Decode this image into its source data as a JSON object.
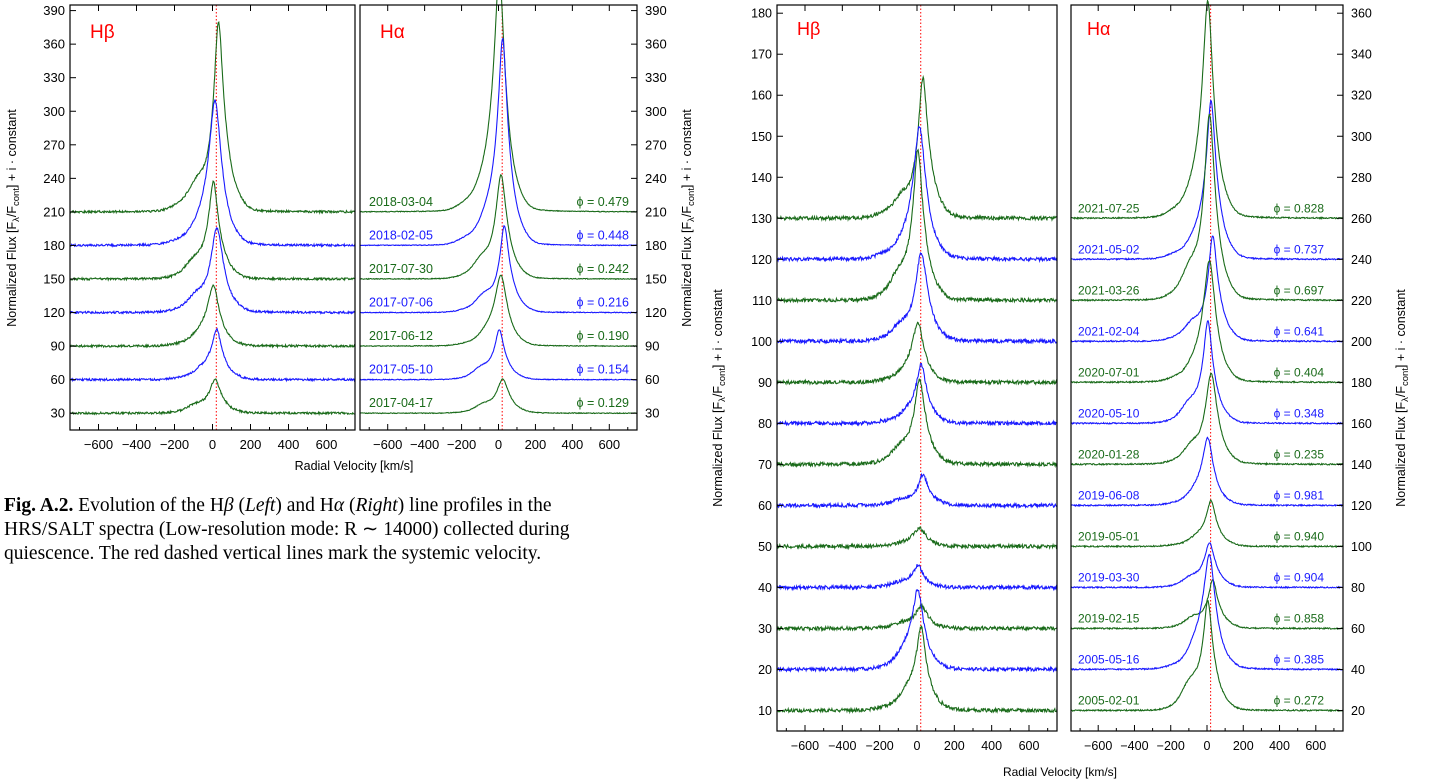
{
  "caption": {
    "label": "Fig. A.2.",
    "line1_a": " Evolution of the H",
    "beta": "β",
    "line1_b": " (",
    "left": "Left",
    "line1_c": ") and H",
    "alpha": "α",
    "line1_d": " (",
    "right": "Right",
    "line1_e": ") line profiles in the",
    "line2": "HRS/SALT spectra (Low-resolution mode: R ∼ 14000) collected during",
    "line3": "quiescence. The red dashed vertical lines mark the systemic velocity."
  },
  "colors": {
    "green": "#1a6b1a",
    "blue": "#1a1aff",
    "red": "#ff0000",
    "axis": "#000000"
  },
  "chart_data": [
    {
      "type": "line",
      "panel_labels": [
        "Hβ",
        "Hα"
      ],
      "xlabel": "Radial Velocity [km/s]",
      "ylabel": "Normalized Flux [F",
      "ylabel_sub1": "λ",
      "ylabel_mid": "/F",
      "ylabel_sub2": "cont",
      "ylabel_end": "] + i · constant",
      "xlim": [
        -750,
        750
      ],
      "xticks": [
        -600,
        -400,
        -200,
        0,
        200,
        400,
        600
      ],
      "xtick_labels": [
        "−600",
        "−400",
        "−200",
        "0",
        "200",
        "400",
        "600"
      ],
      "ylim": [
        15,
        395
      ],
      "yticks": [
        30,
        60,
        90,
        120,
        150,
        180,
        210,
        240,
        270,
        300,
        330,
        360,
        390
      ],
      "ytick_labels": [
        "30",
        "60",
        "90",
        "120",
        "150",
        "180",
        "210",
        "240",
        "270",
        "300",
        "330",
        "360",
        "390"
      ],
      "systemic_velocity": 20,
      "series": [
        {
          "date": "2018-03-04",
          "phase": "ϕ = 0.479",
          "color": "green",
          "hb_base": 210,
          "hb_peak": 158,
          "ha_base": 210,
          "ha_peak": 190
        },
        {
          "date": "2018-02-05",
          "phase": "ϕ = 0.448",
          "color": "blue",
          "hb_base": 180,
          "hb_peak": 116,
          "ha_base": 180,
          "ha_peak": 167
        },
        {
          "date": "2017-07-30",
          "phase": "ϕ = 0.242",
          "color": "green",
          "hb_base": 150,
          "hb_peak": 80,
          "ha_base": 150,
          "ha_peak": 86
        },
        {
          "date": "2017-07-06",
          "phase": "ϕ = 0.216",
          "color": "blue",
          "hb_base": 120,
          "hb_peak": 70,
          "ha_base": 120,
          "ha_peak": 72
        },
        {
          "date": "2017-06-12",
          "phase": "ϕ = 0.190",
          "color": "green",
          "hb_base": 90,
          "hb_peak": 48,
          "ha_base": 90,
          "ha_peak": 56
        },
        {
          "date": "2017-05-10",
          "phase": "ϕ = 0.154",
          "color": "blue",
          "hb_base": 60,
          "hb_peak": 40,
          "ha_base": 60,
          "ha_peak": 41
        },
        {
          "date": "2017-04-17",
          "phase": "ϕ = 0.129",
          "color": "green",
          "hb_base": 30,
          "hb_peak": 28,
          "ha_base": 30,
          "ha_peak": 28
        }
      ]
    },
    {
      "type": "line",
      "panel_labels": [
        "Hβ",
        "Hα"
      ],
      "xlabel": "Radial Velocity [km/s]",
      "ylabel": "Normalized Flux [F",
      "ylabel_sub1": "λ",
      "ylabel_mid": "/F",
      "ylabel_sub2": "cont",
      "ylabel_end": "] + i · constant",
      "xlim": [
        -750,
        750
      ],
      "xticks": [
        -600,
        -400,
        -200,
        0,
        200,
        400,
        600
      ],
      "xtick_labels": [
        "−600",
        "−400",
        "−200",
        "0",
        "200",
        "400",
        "600"
      ],
      "hb_ylim": [
        5,
        182
      ],
      "hb_yticks": [
        10,
        20,
        30,
        40,
        50,
        60,
        70,
        80,
        90,
        100,
        110,
        120,
        130,
        140,
        150,
        160,
        170,
        180
      ],
      "hb_ytick_labels": [
        "10",
        "20",
        "30",
        "40",
        "50",
        "60",
        "70",
        "80",
        "90",
        "100",
        "110",
        "120",
        "130",
        "140",
        "150",
        "160",
        "170",
        "180"
      ],
      "ha_ylim": [
        10,
        364
      ],
      "ha_yticks": [
        20,
        40,
        60,
        80,
        100,
        120,
        140,
        160,
        180,
        200,
        220,
        240,
        260,
        280,
        300,
        320,
        340,
        360
      ],
      "ha_ytick_labels": [
        "20",
        "40",
        "60",
        "80",
        "100",
        "120",
        "140",
        "160",
        "180",
        "200",
        "220",
        "240",
        "260",
        "280",
        "300",
        "320",
        "340",
        "360"
      ],
      "systemic_velocity": 20,
      "series": [
        {
          "date": "2021-07-25",
          "phase": "ϕ = 0.828",
          "color": "green",
          "hb_base": 130,
          "hb_peak": 32,
          "ha_base": 260,
          "ha_peak": 95
        },
        {
          "date": "2021-05-02",
          "phase": "ϕ = 0.737",
          "color": "blue",
          "hb_base": 120,
          "hb_peak": 29,
          "ha_base": 240,
          "ha_peak": 70
        },
        {
          "date": "2021-03-26",
          "phase": "ϕ = 0.697",
          "color": "green",
          "hb_base": 110,
          "hb_peak": 34,
          "ha_base": 220,
          "ha_peak": 84
        },
        {
          "date": "2021-02-04",
          "phase": "ϕ = 0.641",
          "color": "blue",
          "hb_base": 100,
          "hb_peak": 20,
          "ha_base": 200,
          "ha_peak": 48
        },
        {
          "date": "2020-07-01",
          "phase": "ϕ = 0.404",
          "color": "green",
          "hb_base": 90,
          "hb_peak": 13,
          "ha_base": 180,
          "ha_peak": 53
        },
        {
          "date": "2020-05-10",
          "phase": "ϕ = 0.348",
          "color": "blue",
          "hb_base": 80,
          "hb_peak": 13,
          "ha_base": 160,
          "ha_peak": 46
        },
        {
          "date": "2020-01-28",
          "phase": "ϕ = 0.235",
          "color": "green",
          "hb_base": 70,
          "hb_peak": 19,
          "ha_base": 140,
          "ha_peak": 41
        },
        {
          "date": "2019-06-08",
          "phase": "ϕ = 0.981",
          "color": "blue",
          "hb_base": 60,
          "hb_peak": 7,
          "ha_base": 120,
          "ha_peak": 29
        },
        {
          "date": "2019-05-01",
          "phase": "ϕ = 0.940",
          "color": "green",
          "hb_base": 50,
          "hb_peak": 4,
          "ha_base": 100,
          "ha_peak": 20
        },
        {
          "date": "2019-03-30",
          "phase": "ϕ = 0.904",
          "color": "blue",
          "hb_base": 40,
          "hb_peak": 5,
          "ha_base": 80,
          "ha_peak": 20
        },
        {
          "date": "2019-02-15",
          "phase": "ϕ = 0.858",
          "color": "green",
          "hb_base": 30,
          "hb_peak": 5,
          "ha_base": 60,
          "ha_peak": 22
        },
        {
          "date": "2005-05-16",
          "phase": "ϕ = 0.385",
          "color": "blue",
          "hb_base": 20,
          "hb_peak": 17,
          "ha_base": 40,
          "ha_peak": 49
        },
        {
          "date": "2005-02-01",
          "phase": "ϕ = 0.272",
          "color": "green",
          "hb_base": 10,
          "hb_peak": 18,
          "ha_base": 20,
          "ha_peak": 49
        }
      ]
    }
  ]
}
